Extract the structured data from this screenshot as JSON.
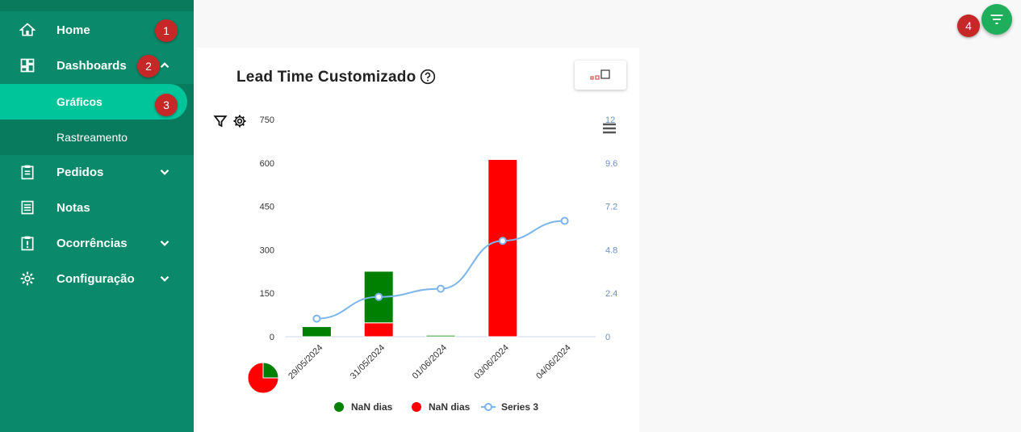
{
  "sidebar": {
    "items": [
      {
        "label": "Home",
        "icon": "home-icon"
      },
      {
        "label": "Dashboards",
        "icon": "dashboard-icon",
        "expanded": true
      },
      {
        "label": "Pedidos",
        "icon": "clipboard-icon"
      },
      {
        "label": "Notas",
        "icon": "receipt-icon"
      },
      {
        "label": "Ocorrências",
        "icon": "alert-clipboard-icon"
      },
      {
        "label": "Configuração",
        "icon": "gear-icon"
      }
    ],
    "subitems": [
      {
        "label": "Gráficos",
        "active": true
      },
      {
        "label": "Rastreamento"
      }
    ]
  },
  "markers": [
    "1",
    "2",
    "3",
    "4"
  ],
  "card": {
    "title": "Lead Time Customizado"
  },
  "chart_data": {
    "type": "bar",
    "categories": [
      "29/05/2024",
      "31/05/2024",
      "01/06/2024",
      "03/06/2024",
      "04/06/2024"
    ],
    "series": [
      {
        "name": "NaN dias",
        "type": "bar",
        "color": "#008000",
        "values": [
          35,
          178,
          5,
          0,
          0
        ]
      },
      {
        "name": "NaN dias",
        "type": "bar",
        "color": "#ff0000",
        "values": [
          0,
          48,
          0,
          612,
          0
        ]
      },
      {
        "name": "Series 3",
        "type": "line",
        "axis": "right",
        "color": "#7cb5ec",
        "values": [
          1.0,
          2.2,
          2.65,
          5.3,
          6.4
        ]
      }
    ],
    "stacked": true,
    "ylim": [
      0,
      750
    ],
    "yticks": [
      "750",
      "600",
      "450",
      "300",
      "150",
      "0"
    ],
    "y2lim": [
      0,
      12
    ],
    "y2ticks": [
      "12",
      "9.6",
      "7.2",
      "4.8",
      "2.4",
      "0"
    ],
    "legend": "bottom",
    "grid": false
  },
  "colors": {
    "sidebar": "#0a8a6a",
    "active": "#00c49a",
    "fab": "#1fae5b",
    "marker": "#c62828"
  }
}
